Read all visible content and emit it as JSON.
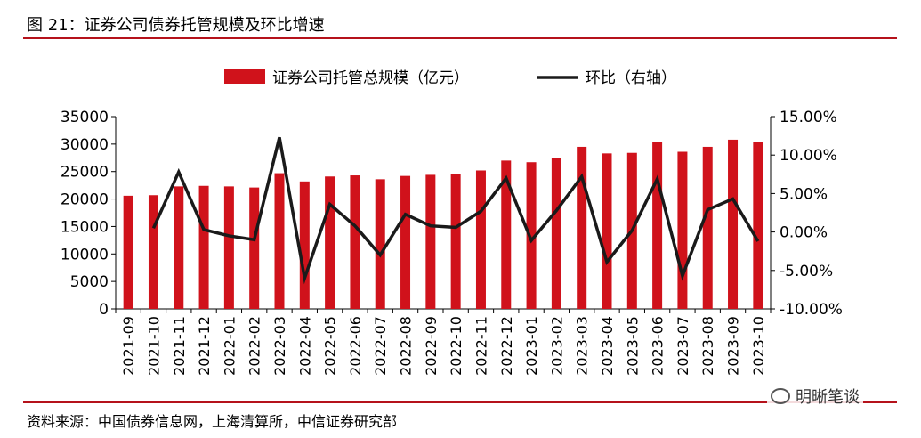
{
  "header": {
    "title": "图 21：证券公司债券托管规模及环比增速"
  },
  "footer": {
    "source": "资料来源：中国债券信息网，上海清算所，中信证券研究部",
    "watermark": "明晰笔谈",
    "watermark_icon": "wechat-icon"
  },
  "colors": {
    "bar": "#d0121b",
    "line": "#1a1a1a",
    "rule": "#b5121b"
  },
  "chart_data": {
    "type": "bar",
    "title": "",
    "categories": [
      "2021-09",
      "2021-10",
      "2021-11",
      "2021-12",
      "2022-01",
      "2022-02",
      "2022-03",
      "2022-04",
      "2022-05",
      "2022-06",
      "2022-07",
      "2022-08",
      "2022-09",
      "2022-10",
      "2022-11",
      "2022-12",
      "2023-01",
      "2023-02",
      "2023-03",
      "2023-04",
      "2023-05",
      "2023-06",
      "2023-07",
      "2023-08",
      "2023-09",
      "2023-10"
    ],
    "series": [
      {
        "name": "证券公司托管总规模（亿元）",
        "type": "bar",
        "axis": "left",
        "values": [
          20600,
          20700,
          22300,
          22400,
          22300,
          22100,
          24700,
          23200,
          24100,
          24300,
          23600,
          24200,
          24400,
          24500,
          25200,
          27000,
          26700,
          27400,
          29500,
          28300,
          28400,
          30400,
          28600,
          29500,
          30800,
          30400
        ]
      },
      {
        "name": "环比（右轴）",
        "type": "line",
        "axis": "right",
        "values": [
          null,
          0.5,
          7.8,
          0.3,
          -0.5,
          -1.0,
          12.3,
          -6.0,
          3.6,
          0.8,
          -3.0,
          2.3,
          0.8,
          0.6,
          2.7,
          7.0,
          -1.1,
          2.8,
          7.2,
          -3.9,
          0.2,
          6.9,
          -5.7,
          2.9,
          4.3,
          -1.2
        ]
      }
    ],
    "y_left": {
      "ylim": [
        0,
        35000
      ],
      "ticks": [
        "0",
        "5000",
        "10000",
        "15000",
        "20000",
        "25000",
        "30000",
        "35000"
      ]
    },
    "y_right": {
      "ylim": [
        -10,
        15
      ],
      "unit": "%",
      "ticks": [
        "-10.00%",
        "-5.00%",
        "0.00%",
        "5.00%",
        "10.00%",
        "15.00%"
      ]
    },
    "legend": "top-center",
    "grid": false
  }
}
